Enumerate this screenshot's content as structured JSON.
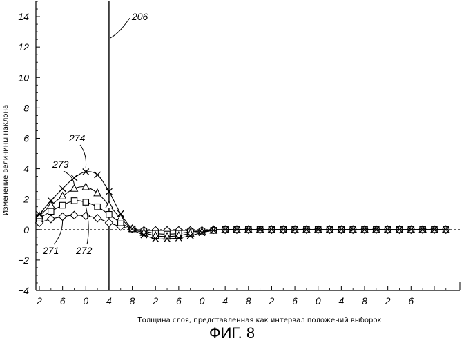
{
  "chart_data": {
    "type": "line",
    "title": "",
    "figure_label": "ФИГ. 8",
    "xlabel": "Толщина слоя, представленная как интервал положений выборок",
    "ylabel": "Изменение величины наклона",
    "ylim": [
      -4,
      15
    ],
    "yticks": [
      -4,
      -2,
      0,
      2,
      4,
      6,
      8,
      10,
      12,
      14
    ],
    "xlim": [
      0,
      36.5
    ],
    "x_tick_positions": [
      0,
      2,
      4,
      6,
      8,
      10,
      12,
      14,
      16,
      18,
      20,
      22,
      24,
      26,
      28,
      30,
      32,
      34
    ],
    "x_tick_labels": [
      "2",
      "6",
      "0",
      "4",
      "8",
      "2",
      "6",
      "0",
      "4",
      "8",
      "2",
      "6",
      "0",
      "4",
      "8",
      "2",
      "6",
      ""
    ],
    "grid": false,
    "zero_line": "dashed",
    "vertical_marker": {
      "x": 6,
      "label": "206"
    },
    "x": [
      0,
      1,
      2,
      3,
      4,
      5,
      6,
      7,
      8,
      9,
      10,
      11,
      12,
      13,
      14,
      15,
      16,
      17,
      18,
      19,
      20,
      21,
      22,
      23,
      24,
      25,
      26,
      27,
      28,
      29,
      30,
      31,
      32,
      33,
      34,
      35
    ],
    "series": [
      {
        "name": "271",
        "marker": "diamond",
        "values": [
          0.45,
          0.7,
          0.85,
          0.95,
          0.9,
          0.75,
          0.45,
          0.2,
          0.05,
          -0.05,
          -0.05,
          -0.05,
          -0.05,
          -0.05,
          -0.05,
          0,
          0,
          0,
          0,
          0,
          0,
          0,
          0,
          0,
          0,
          0,
          0,
          0,
          0,
          0,
          0,
          0,
          0,
          0,
          0,
          0
        ]
      },
      {
        "name": "272",
        "marker": "square",
        "values": [
          0.75,
          1.2,
          1.6,
          1.9,
          1.8,
          1.5,
          1.0,
          0.45,
          0.05,
          -0.1,
          -0.25,
          -0.3,
          -0.25,
          -0.15,
          -0.1,
          -0.05,
          0,
          0,
          0,
          0,
          0,
          0,
          0,
          0,
          0,
          0,
          0,
          0,
          0,
          0,
          0,
          0,
          0,
          0,
          0,
          0
        ]
      },
      {
        "name": "273",
        "marker": "triangle",
        "values": [
          0.9,
          1.6,
          2.2,
          2.7,
          2.8,
          2.4,
          1.6,
          0.75,
          0.05,
          -0.2,
          -0.4,
          -0.45,
          -0.4,
          -0.25,
          -0.15,
          -0.05,
          0,
          0,
          0,
          0,
          0,
          0,
          0,
          0,
          0,
          0,
          0,
          0,
          0,
          0,
          0,
          0,
          0,
          0,
          0,
          0
        ]
      },
      {
        "name": "274",
        "marker": "x",
        "values": [
          1.0,
          1.9,
          2.7,
          3.4,
          3.8,
          3.6,
          2.5,
          1.05,
          0.05,
          -0.35,
          -0.6,
          -0.6,
          -0.55,
          -0.4,
          -0.2,
          -0.05,
          0,
          0,
          0,
          0,
          0,
          0,
          0,
          0,
          0,
          0,
          0,
          0,
          0,
          0,
          0,
          0,
          0,
          0,
          0,
          0
        ]
      }
    ],
    "annotations": [
      {
        "text": "271",
        "target_series": "271"
      },
      {
        "text": "272",
        "target_series": "272"
      },
      {
        "text": "273",
        "target_series": "273"
      },
      {
        "text": "274",
        "target_series": "274"
      }
    ]
  }
}
